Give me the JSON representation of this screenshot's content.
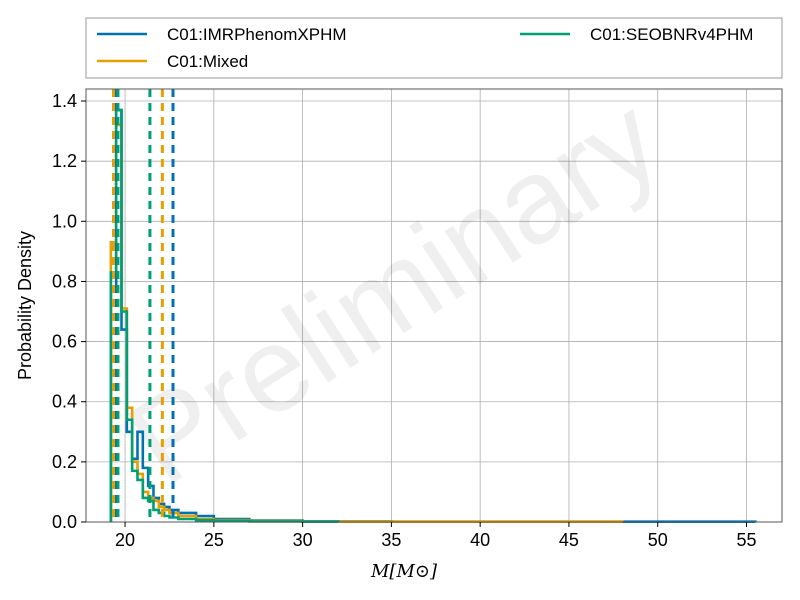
{
  "chart_data": {
    "type": "histogram",
    "watermark": "Preliminary",
    "xlabel": "M[M⊙]",
    "ylabel": "Probability Density",
    "xlim": [
      17.8,
      57.0
    ],
    "ylim": [
      0,
      1.44
    ],
    "x_ticks": [
      20,
      25,
      30,
      35,
      40,
      45,
      50,
      55
    ],
    "y_ticks": [
      0.0,
      0.2,
      0.4,
      0.6,
      0.8,
      1.0,
      1.2,
      1.4
    ],
    "grid": true,
    "legend": {
      "placement": "top",
      "columns": 2
    },
    "series": [
      {
        "name": "C01:IMRPhenomXPHM",
        "color": "#0072b2",
        "bin_edges": [
          19.2,
          19.5,
          19.8,
          20.1,
          20.4,
          20.7,
          21.0,
          21.3,
          21.6,
          21.9,
          22.2,
          22.5,
          23.0,
          24.0,
          25.0,
          27.0,
          30.0,
          35.0,
          45.0,
          55.5
        ],
        "density": [
          0.78,
          1.37,
          0.64,
          0.3,
          0.21,
          0.3,
          0.18,
          0.12,
          0.08,
          0.06,
          0.05,
          0.04,
          0.03,
          0.02,
          0.01,
          0.005,
          0.002,
          0.001,
          0.001
        ],
        "median_line": 22.7
      },
      {
        "name": "C01:Mixed",
        "color": "#e69f00",
        "bin_edges": [
          19.2,
          19.5,
          19.8,
          20.1,
          20.4,
          20.7,
          21.0,
          21.3,
          21.6,
          21.9,
          22.2,
          22.5,
          23.0,
          24.0,
          25.0,
          27.0,
          30.0,
          35.0,
          48.0
        ],
        "density": [
          0.93,
          1.32,
          0.71,
          0.38,
          0.2,
          0.16,
          0.1,
          0.08,
          0.07,
          0.05,
          0.04,
          0.03,
          0.02,
          0.01,
          0.006,
          0.003,
          0.001,
          0.001
        ],
        "median_line": 22.1
      },
      {
        "name": "C01:SEOBNRv4PHM",
        "color": "#009e73",
        "bin_edges": [
          19.2,
          19.5,
          19.8,
          20.1,
          20.4,
          20.7,
          21.0,
          21.3,
          21.6,
          21.9,
          22.2,
          22.5,
          23.0,
          24.0,
          25.0,
          27.0,
          30.0,
          32.0
        ],
        "density": [
          0.83,
          1.37,
          0.7,
          0.34,
          0.17,
          0.14,
          0.08,
          0.07,
          0.04,
          0.03,
          0.02,
          0.015,
          0.01,
          0.006,
          0.004,
          0.002,
          0.001
        ],
        "median_line": 21.4
      }
    ],
    "quantile_lines": [
      {
        "series": "C01:IMRPhenomXPHM",
        "x": 19.45
      },
      {
        "series": "C01:Mixed",
        "x": 19.35
      },
      {
        "series": "C01:SEOBNRv4PHM",
        "x": 19.6
      }
    ]
  }
}
